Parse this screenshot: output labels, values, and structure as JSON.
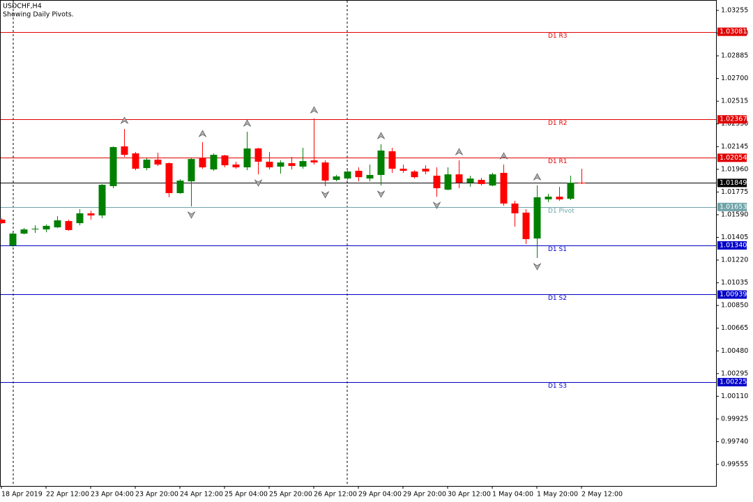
{
  "chart_data": {
    "type": "candlestick",
    "title": "USDCHF,H4",
    "subtitle": "Showing Daily Pivots.",
    "categories": [
      "18 Apr 2019",
      null,
      null,
      null,
      "22 Apr 12:00",
      null,
      null,
      null,
      "23 Apr 04:00",
      null,
      null,
      null,
      "23 Apr 20:00",
      null,
      null,
      null,
      "24 Apr 12:00",
      null,
      null,
      null,
      "25 Apr 04:00",
      null,
      null,
      null,
      "25 Apr 20:00",
      null,
      null,
      null,
      "26 Apr 12:00",
      null,
      null,
      null,
      "29 Apr 04:00",
      null,
      null,
      null,
      "29 Apr 20:00",
      null,
      null,
      null,
      "30 Apr 12:00",
      null,
      null,
      null,
      "1 May 04:00",
      null,
      null,
      null,
      "1 May 20:00",
      null,
      null,
      null,
      "2 May 12:00"
    ],
    "ohlc": {
      "open": [
        1.0155,
        1.01339,
        1.01436,
        1.01476,
        1.0147,
        1.01487,
        1.01538,
        1.01521,
        1.01601,
        1.01584,
        1.01823,
        1.02147,
        1.0209,
        1.0197,
        1.02039,
        1.0201,
        1.01766,
        1.01862,
        1.0205,
        1.01959,
        1.02073,
        1.01999,
        1.01976,
        1.0213,
        1.02022,
        1.01982,
        1.0201,
        1.01982,
        1.02033,
        1.02016,
        1.01874,
        1.01885,
        1.01948,
        1.01885,
        1.01914,
        1.02107,
        1.01965,
        1.01942,
        1.01965,
        1.01908,
        1.01794,
        1.01919,
        1.01851,
        1.01874,
        1.01828,
        1.01931,
        1.01681,
        1.01607,
        1.01396,
        1.01715,
        1.01737,
        1.0172,
        1.01851
      ],
      "high": [
        1.01561,
        1.01442,
        1.01482,
        1.01504,
        1.0151,
        1.01578,
        1.0155,
        1.01635,
        1.01624,
        1.0184,
        1.02147,
        1.02289,
        1.02101,
        1.0205,
        1.02095,
        1.02016,
        1.01879,
        1.02056,
        1.02181,
        1.0209,
        1.02078,
        1.02022,
        1.02266,
        1.02135,
        1.02101,
        1.02033,
        1.02061,
        1.02135,
        1.02374,
        1.02033,
        1.01914,
        1.01953,
        1.01976,
        1.01999,
        1.02164,
        1.02135,
        1.01999,
        1.01953,
        1.01993,
        1.01976,
        1.01976,
        1.02033,
        1.01908,
        1.01891,
        1.01931,
        1.01999,
        1.01703,
        1.01635,
        1.01828,
        1.0176,
        1.01817,
        1.01908,
        1.01965
      ],
      "low": [
        1.01516,
        1.01328,
        1.0143,
        1.01442,
        1.01447,
        1.01482,
        1.01459,
        1.01504,
        1.0155,
        1.01561,
        1.01806,
        1.02061,
        1.01953,
        1.01953,
        1.01987,
        1.01732,
        1.0176,
        1.01658,
        1.01965,
        1.01948,
        1.01976,
        1.01965,
        1.01953,
        1.01919,
        1.01959,
        1.01925,
        1.01959,
        1.01965,
        1.01999,
        1.01823,
        1.01862,
        1.01874,
        1.01862,
        1.01862,
        1.01828,
        1.01931,
        1.01931,
        1.01885,
        1.01919,
        1.01737,
        1.01789,
        1.01806,
        1.01817,
        1.01828,
        1.01823,
        1.01663,
        1.01493,
        1.01351,
        1.01237,
        1.01692,
        1.01703,
        1.01709,
        1.0184
      ],
      "close": [
        1.01521,
        1.01436,
        1.0147,
        1.01476,
        1.01499,
        1.01544,
        1.01465,
        1.01601,
        1.01584,
        1.01834,
        1.02141,
        1.02078,
        1.01965,
        1.02039,
        1.01999,
        1.01766,
        1.01868,
        1.02044,
        1.01976,
        1.02078,
        1.01993,
        1.01976,
        1.0213,
        1.02022,
        1.01976,
        1.02016,
        1.01987,
        1.02027,
        1.02016,
        1.01868,
        1.01902,
        1.01942,
        1.01896,
        1.01914,
        1.02113,
        1.01965,
        1.01948,
        1.01896,
        1.01942,
        1.01806,
        1.01919,
        1.01851,
        1.01885,
        1.0184,
        1.01919,
        1.01681,
        1.01601,
        1.01391,
        1.01732,
        1.01737,
        1.01715,
        1.01851,
        1.01849
      ]
    },
    "up_color": "#008000",
    "down_color": "#ff0000",
    "fractals_up": [
      null,
      null,
      null,
      null,
      null,
      null,
      null,
      null,
      null,
      null,
      null,
      1.02289,
      null,
      null,
      null,
      null,
      null,
      null,
      1.02181,
      null,
      null,
      null,
      1.02266,
      null,
      null,
      null,
      null,
      null,
      1.02374,
      null,
      null,
      null,
      null,
      null,
      1.02164,
      null,
      null,
      null,
      null,
      null,
      null,
      1.02033,
      null,
      null,
      null,
      1.01999,
      null,
      null,
      1.01828,
      null,
      null,
      null,
      null
    ],
    "fractals_down": [
      null,
      null,
      null,
      null,
      null,
      null,
      null,
      null,
      null,
      null,
      null,
      null,
      null,
      null,
      null,
      null,
      null,
      1.01658,
      null,
      null,
      null,
      null,
      null,
      1.01919,
      null,
      null,
      null,
      null,
      null,
      1.01823,
      null,
      null,
      null,
      null,
      1.01828,
      null,
      null,
      null,
      null,
      1.01737,
      null,
      null,
      null,
      null,
      null,
      null,
      null,
      null,
      1.01237,
      null,
      null,
      null,
      null
    ],
    "levels": [
      {
        "name": "D1 R3",
        "value": 1.03081,
        "label": "1.03081",
        "color": "#e00000"
      },
      {
        "name": "D1 R2",
        "value": 1.02367,
        "label": "1.02367",
        "color": "#e00000"
      },
      {
        "name": "D1 R1",
        "value": 1.02054,
        "label": "1.02054",
        "color": "#e00000"
      },
      {
        "name": "D1 Pivot",
        "value": 1.01653,
        "label": "1.01653",
        "color": "#6fa3a8"
      },
      {
        "name": "D1 S1",
        "value": 1.0134,
        "label": "1.01340",
        "color": "#0000c8"
      },
      {
        "name": "D1 S2",
        "value": 1.00939,
        "label": "1.00939",
        "color": "#0000c8"
      },
      {
        "name": "D1 S3",
        "value": 1.00225,
        "label": "1.00225",
        "color": "#0000c8"
      }
    ],
    "last_price": 1.01849,
    "ylim": [
      0.99379,
      1.0334
    ],
    "yticks": [
      1.03255,
      {
        "value": 1.0307,
        "label": "1.03070"
      },
      1.02885,
      {
        "value": 1.027,
        "label": "1.02700"
      },
      1.02515,
      {
        "value": 1.0233,
        "label": "1.02330"
      },
      1.02145,
      {
        "value": 1.0196,
        "label": "1.01960"
      },
      1.01775,
      {
        "value": 1.0159,
        "label": "1.01590"
      },
      1.01405,
      {
        "value": 1.0122,
        "label": "1.01220"
      },
      1.01035,
      {
        "value": 1.0085,
        "label": "1.00850"
      },
      1.00665,
      {
        "value": 1.0048,
        "label": "1.00480"
      },
      1.00295,
      {
        "value": 1.0011,
        "label": "1.00110"
      },
      0.99925,
      {
        "value": 0.9974,
        "label": "0.99740"
      },
      0.99555
    ]
  }
}
